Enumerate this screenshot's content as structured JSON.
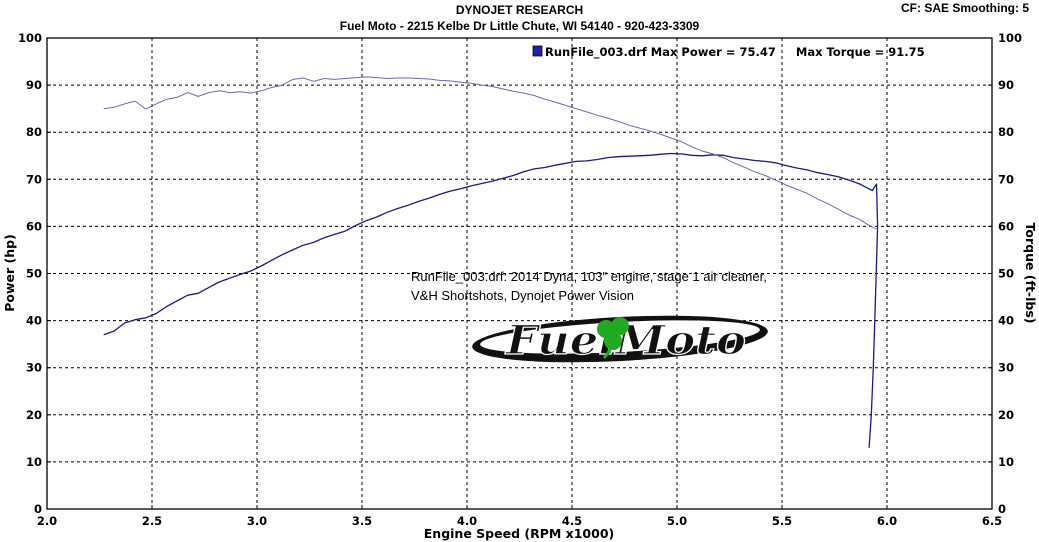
{
  "header": {
    "company": "DYNOJET RESEARCH",
    "shop_line": "Fuel Moto - 2215 Kelbe Dr  Little Chute, WI 54140 - 920-423-3309",
    "cf_line": "CF: SAE  Smoothing: 5"
  },
  "legend": {
    "text": "RunFile_003.drf Max Power = 75.47     Max Torque = 91.75",
    "swatch_color": "#2020b0"
  },
  "annotation": {
    "line1": "RunFile_003.drf: 2014 Dyna, 103\" engine, stage 1 air cleaner,",
    "line2": "V&H Shortshots, Dynojet Power Vision"
  },
  "logo": {
    "text": "FuelMoto",
    "clover_color": "#1faa1f"
  },
  "chart_data": {
    "type": "line",
    "xlabel": "Engine Speed (RPM x1000)",
    "ylabel": "Power (hp)",
    "y2label": "Torque (ft-lbs)",
    "xlim": [
      2.0,
      6.5
    ],
    "ylim": [
      0,
      100
    ],
    "y2lim": [
      0,
      100
    ],
    "x_ticks": [
      "2.0",
      "2.5",
      "3.0",
      "3.5",
      "4.0",
      "4.5",
      "5.0",
      "5.5",
      "6.0",
      "6.5"
    ],
    "y_ticks": [
      "0",
      "10",
      "20",
      "30",
      "40",
      "50",
      "60",
      "70",
      "80",
      "90",
      "100"
    ],
    "grid": true,
    "legend_position": "top-center",
    "series": [
      {
        "name": "Max Power",
        "axis": "left",
        "color": "#1a1a8c",
        "points": [
          [
            2.27,
            37.0
          ],
          [
            2.32,
            37.8
          ],
          [
            2.37,
            39.5
          ],
          [
            2.42,
            40.2
          ],
          [
            2.47,
            40.6
          ],
          [
            2.52,
            41.5
          ],
          [
            2.57,
            43.0
          ],
          [
            2.62,
            44.2
          ],
          [
            2.67,
            45.4
          ],
          [
            2.72,
            45.8
          ],
          [
            2.77,
            47.0
          ],
          [
            2.82,
            48.2
          ],
          [
            2.87,
            49.0
          ],
          [
            2.92,
            49.8
          ],
          [
            2.97,
            50.5
          ],
          [
            3.02,
            51.6
          ],
          [
            3.07,
            52.8
          ],
          [
            3.12,
            54.0
          ],
          [
            3.17,
            55.0
          ],
          [
            3.22,
            56.0
          ],
          [
            3.27,
            56.6
          ],
          [
            3.32,
            57.6
          ],
          [
            3.37,
            58.3
          ],
          [
            3.42,
            59.0
          ],
          [
            3.47,
            60.2
          ],
          [
            3.52,
            61.2
          ],
          [
            3.57,
            62.0
          ],
          [
            3.62,
            63.0
          ],
          [
            3.67,
            63.8
          ],
          [
            3.72,
            64.5
          ],
          [
            3.77,
            65.3
          ],
          [
            3.82,
            66.0
          ],
          [
            3.87,
            66.8
          ],
          [
            3.92,
            67.5
          ],
          [
            3.97,
            68.0
          ],
          [
            4.02,
            68.6
          ],
          [
            4.07,
            69.1
          ],
          [
            4.12,
            69.6
          ],
          [
            4.17,
            70.2
          ],
          [
            4.22,
            70.8
          ],
          [
            4.27,
            71.6
          ],
          [
            4.32,
            72.2
          ],
          [
            4.37,
            72.5
          ],
          [
            4.42,
            73.0
          ],
          [
            4.47,
            73.4
          ],
          [
            4.52,
            73.8
          ],
          [
            4.57,
            73.9
          ],
          [
            4.62,
            74.2
          ],
          [
            4.67,
            74.6
          ],
          [
            4.72,
            74.8
          ],
          [
            4.77,
            74.9
          ],
          [
            4.82,
            75.0
          ],
          [
            4.87,
            75.1
          ],
          [
            4.92,
            75.3
          ],
          [
            4.97,
            75.47
          ],
          [
            5.02,
            75.4
          ],
          [
            5.07,
            75.1
          ],
          [
            5.12,
            75.0
          ],
          [
            5.17,
            75.2
          ],
          [
            5.22,
            75.1
          ],
          [
            5.27,
            74.6
          ],
          [
            5.32,
            74.3
          ],
          [
            5.37,
            74.0
          ],
          [
            5.42,
            73.8
          ],
          [
            5.47,
            73.5
          ],
          [
            5.52,
            72.9
          ],
          [
            5.57,
            72.4
          ],
          [
            5.62,
            72.0
          ],
          [
            5.67,
            71.4
          ],
          [
            5.72,
            71.0
          ],
          [
            5.77,
            70.5
          ],
          [
            5.82,
            69.8
          ],
          [
            5.87,
            69.0
          ],
          [
            5.9,
            68.3
          ],
          [
            5.93,
            67.6
          ],
          [
            5.95,
            69.0
          ],
          [
            5.955,
            60.0
          ],
          [
            5.945,
            45.0
          ],
          [
            5.935,
            30.0
          ],
          [
            5.925,
            20.0
          ],
          [
            5.915,
            13.0
          ]
        ]
      },
      {
        "name": "Max Torque",
        "axis": "right",
        "color": "#6a6ab0",
        "points": [
          [
            2.27,
            85.0
          ],
          [
            2.32,
            85.3
          ],
          [
            2.37,
            86.0
          ],
          [
            2.42,
            86.6
          ],
          [
            2.47,
            84.9
          ],
          [
            2.52,
            86.0
          ],
          [
            2.57,
            87.0
          ],
          [
            2.62,
            87.4
          ],
          [
            2.67,
            88.4
          ],
          [
            2.72,
            87.6
          ],
          [
            2.77,
            88.4
          ],
          [
            2.82,
            88.8
          ],
          [
            2.87,
            88.4
          ],
          [
            2.92,
            88.6
          ],
          [
            2.97,
            88.3
          ],
          [
            3.02,
            88.8
          ],
          [
            3.07,
            89.5
          ],
          [
            3.12,
            90.0
          ],
          [
            3.17,
            91.2
          ],
          [
            3.22,
            91.5
          ],
          [
            3.27,
            90.8
          ],
          [
            3.32,
            91.4
          ],
          [
            3.37,
            91.2
          ],
          [
            3.42,
            91.4
          ],
          [
            3.47,
            91.6
          ],
          [
            3.52,
            91.75
          ],
          [
            3.57,
            91.6
          ],
          [
            3.62,
            91.4
          ],
          [
            3.67,
            91.5
          ],
          [
            3.72,
            91.5
          ],
          [
            3.77,
            91.4
          ],
          [
            3.82,
            91.3
          ],
          [
            3.87,
            91.0
          ],
          [
            3.92,
            90.9
          ],
          [
            3.97,
            90.6
          ],
          [
            4.02,
            90.4
          ],
          [
            4.07,
            90.0
          ],
          [
            4.12,
            89.7
          ],
          [
            4.17,
            89.2
          ],
          [
            4.22,
            88.7
          ],
          [
            4.27,
            88.3
          ],
          [
            4.32,
            87.8
          ],
          [
            4.37,
            87.0
          ],
          [
            4.42,
            86.4
          ],
          [
            4.47,
            85.7
          ],
          [
            4.52,
            85.0
          ],
          [
            4.57,
            84.3
          ],
          [
            4.62,
            83.6
          ],
          [
            4.67,
            83.0
          ],
          [
            4.72,
            82.3
          ],
          [
            4.77,
            81.5
          ],
          [
            4.82,
            80.9
          ],
          [
            4.87,
            80.3
          ],
          [
            4.92,
            79.6
          ],
          [
            4.97,
            78.8
          ],
          [
            5.02,
            78.0
          ],
          [
            5.07,
            76.9
          ],
          [
            5.12,
            76.0
          ],
          [
            5.17,
            75.4
          ],
          [
            5.22,
            74.6
          ],
          [
            5.27,
            73.5
          ],
          [
            5.32,
            72.6
          ],
          [
            5.37,
            71.6
          ],
          [
            5.42,
            70.8
          ],
          [
            5.47,
            69.8
          ],
          [
            5.52,
            68.8
          ],
          [
            5.57,
            67.9
          ],
          [
            5.62,
            67.0
          ],
          [
            5.67,
            65.8
          ],
          [
            5.72,
            64.8
          ],
          [
            5.77,
            63.6
          ],
          [
            5.82,
            62.4
          ],
          [
            5.87,
            61.5
          ],
          [
            5.9,
            60.6
          ],
          [
            5.93,
            59.8
          ],
          [
            5.95,
            59.5
          ]
        ]
      }
    ]
  }
}
